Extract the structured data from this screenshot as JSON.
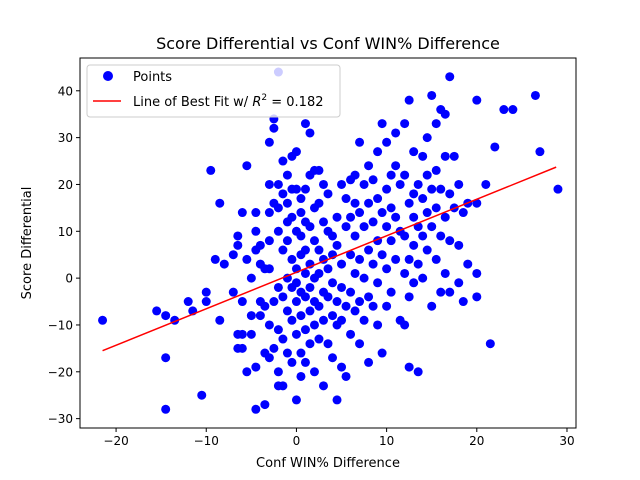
{
  "chart_data": {
    "type": "scatter",
    "title": "Score Differential vs Conf WIN% Difference",
    "xlabel": "Conf WIN% Difference",
    "ylabel": "Score Differential",
    "xlim": [
      -24,
      31
    ],
    "ylim": [
      -32,
      47
    ],
    "xticks": [
      -20,
      -10,
      0,
      10,
      20,
      30
    ],
    "xtick_labels": [
      "−20",
      "−10",
      "0",
      "10",
      "20",
      "30"
    ],
    "yticks": [
      -30,
      -20,
      -10,
      0,
      10,
      20,
      30,
      40
    ],
    "ytick_labels": [
      "−30",
      "−20",
      "−10",
      "0",
      "10",
      "20",
      "30",
      "40"
    ],
    "grid": false,
    "legend_position": "upper-left",
    "series": [
      {
        "name": "Points",
        "type": "scatter",
        "color": "#0000ff",
        "points": [
          [
            -21.5,
            -9
          ],
          [
            -15.5,
            -7
          ],
          [
            -14.5,
            -8
          ],
          [
            -14.5,
            -17
          ],
          [
            -14.5,
            -28
          ],
          [
            -13.5,
            -9
          ],
          [
            -12,
            -5
          ],
          [
            -11.5,
            -7
          ],
          [
            -10.5,
            -25
          ],
          [
            -10,
            -5
          ],
          [
            -10,
            -3
          ],
          [
            -9.5,
            23
          ],
          [
            -9,
            4
          ],
          [
            -8.5,
            16
          ],
          [
            -8.5,
            -9
          ],
          [
            -8,
            3
          ],
          [
            -7,
            5
          ],
          [
            -7,
            -3
          ],
          [
            -6.5,
            9
          ],
          [
            -6.5,
            7
          ],
          [
            -6.5,
            -12
          ],
          [
            -6.5,
            -15
          ],
          [
            -6,
            -5
          ],
          [
            -6,
            -12
          ],
          [
            -6,
            14
          ],
          [
            -6,
            -15
          ],
          [
            -5.5,
            4
          ],
          [
            -5.5,
            24
          ],
          [
            -5.5,
            -20
          ],
          [
            -5,
            -12
          ],
          [
            -5,
            0
          ],
          [
            -5,
            -8
          ],
          [
            -4.5,
            14
          ],
          [
            -4.5,
            10
          ],
          [
            -4.5,
            6
          ],
          [
            -4.5,
            -19
          ],
          [
            -4.5,
            -28
          ],
          [
            -4,
            3
          ],
          [
            -4,
            -8
          ],
          [
            -4,
            -5
          ],
          [
            -4,
            7
          ],
          [
            -3.5,
            -27
          ],
          [
            -3.5,
            -16
          ],
          [
            -3.5,
            2
          ],
          [
            -3.5,
            -6
          ],
          [
            -3,
            29
          ],
          [
            -3,
            20
          ],
          [
            -3,
            14
          ],
          [
            -3,
            8
          ],
          [
            -3,
            2
          ],
          [
            -3,
            -10
          ],
          [
            -3,
            -17
          ],
          [
            -2.5,
            34
          ],
          [
            -2.5,
            32
          ],
          [
            -2.5,
            16
          ],
          [
            -2.5,
            -5
          ],
          [
            -2.5,
            -15
          ],
          [
            -2,
            44
          ],
          [
            -2,
            20
          ],
          [
            -2,
            15
          ],
          [
            -2,
            10
          ],
          [
            -2,
            -2
          ],
          [
            -2,
            -11
          ],
          [
            -2,
            -20
          ],
          [
            -2,
            -23
          ],
          [
            -1.5,
            18
          ],
          [
            -1.5,
            25
          ],
          [
            -1.5,
            6
          ],
          [
            -1.5,
            -4
          ],
          [
            -1.5,
            -13
          ],
          [
            -1.5,
            -23
          ],
          [
            -1,
            22
          ],
          [
            -1,
            16
          ],
          [
            -1,
            12
          ],
          [
            -1,
            8
          ],
          [
            -1,
            0
          ],
          [
            -1,
            -7
          ],
          [
            -1,
            -16
          ],
          [
            -0.5,
            26
          ],
          [
            -0.5,
            19
          ],
          [
            -0.5,
            13
          ],
          [
            -0.5,
            4
          ],
          [
            -0.5,
            -2
          ],
          [
            -0.5,
            -9
          ],
          [
            -0.5,
            -18
          ],
          [
            0,
            27
          ],
          [
            0,
            19
          ],
          [
            0,
            10
          ],
          [
            0,
            2
          ],
          [
            0,
            -1
          ],
          [
            0,
            -5
          ],
          [
            0,
            -12
          ],
          [
            0,
            -26
          ],
          [
            0.5,
            17
          ],
          [
            0.5,
            14
          ],
          [
            0.5,
            9
          ],
          [
            0.5,
            5
          ],
          [
            0.5,
            -3
          ],
          [
            0.5,
            -8
          ],
          [
            0.5,
            -16
          ],
          [
            0.5,
            -21
          ],
          [
            1,
            33
          ],
          [
            1,
            19
          ],
          [
            1,
            12
          ],
          [
            1,
            6
          ],
          [
            1,
            1
          ],
          [
            1,
            -4
          ],
          [
            1,
            -11
          ],
          [
            1,
            -18
          ],
          [
            1.5,
            31
          ],
          [
            1.5,
            22
          ],
          [
            1.5,
            11
          ],
          [
            1.5,
            3
          ],
          [
            1.5,
            -2
          ],
          [
            1.5,
            -7
          ],
          [
            1.5,
            -14
          ],
          [
            2,
            23
          ],
          [
            2,
            15
          ],
          [
            2,
            8
          ],
          [
            2,
            0
          ],
          [
            2,
            -5
          ],
          [
            2,
            -10
          ],
          [
            2,
            -20
          ],
          [
            2.5,
            23
          ],
          [
            2.5,
            16
          ],
          [
            2.5,
            6
          ],
          [
            2.5,
            1
          ],
          [
            2.5,
            -6
          ],
          [
            2.5,
            -13
          ],
          [
            3,
            20
          ],
          [
            3,
            12
          ],
          [
            3,
            4
          ],
          [
            3,
            -3
          ],
          [
            3,
            -9
          ],
          [
            3,
            -23
          ],
          [
            3.5,
            18
          ],
          [
            3.5,
            10
          ],
          [
            3.5,
            2
          ],
          [
            3.5,
            -4
          ],
          [
            3.5,
            -14
          ],
          [
            4,
            9
          ],
          [
            4,
            5
          ],
          [
            4,
            -1
          ],
          [
            4,
            -8
          ],
          [
            4,
            -17
          ],
          [
            4.5,
            13
          ],
          [
            4.5,
            7
          ],
          [
            4.5,
            -5
          ],
          [
            4.5,
            -10
          ],
          [
            4.5,
            -26
          ],
          [
            5,
            20
          ],
          [
            5,
            3
          ],
          [
            5,
            -2
          ],
          [
            5,
            -9
          ],
          [
            5,
            -19
          ],
          [
            5.5,
            17
          ],
          [
            5.5,
            11
          ],
          [
            5.5,
            -6
          ],
          [
            5.5,
            -21
          ],
          [
            6,
            21
          ],
          [
            6,
            13
          ],
          [
            6,
            5
          ],
          [
            6,
            -3
          ],
          [
            6,
            -12
          ],
          [
            6.5,
            22
          ],
          [
            6.5,
            16
          ],
          [
            6.5,
            9
          ],
          [
            6.5,
            1
          ],
          [
            6.5,
            -7
          ],
          [
            7,
            29
          ],
          [
            7,
            14
          ],
          [
            7,
            4
          ],
          [
            7,
            -5
          ],
          [
            7,
            -14
          ],
          [
            7.5,
            20
          ],
          [
            7.5,
            11
          ],
          [
            7.5,
            0
          ],
          [
            7.5,
            -9
          ],
          [
            8,
            24
          ],
          [
            8,
            16
          ],
          [
            8,
            6
          ],
          [
            8,
            -4
          ],
          [
            8,
            -18
          ],
          [
            8.5,
            21
          ],
          [
            8.5,
            12
          ],
          [
            8.5,
            3
          ],
          [
            8.5,
            -6
          ],
          [
            9,
            27
          ],
          [
            9,
            17
          ],
          [
            9,
            8
          ],
          [
            9,
            -1
          ],
          [
            9,
            -10
          ],
          [
            9.5,
            33
          ],
          [
            9.5,
            14
          ],
          [
            9.5,
            5
          ],
          [
            9.5,
            -16
          ],
          [
            10,
            29
          ],
          [
            10,
            19
          ],
          [
            10,
            11
          ],
          [
            10,
            2
          ],
          [
            10,
            -6
          ],
          [
            10.5,
            22
          ],
          [
            10.5,
            15
          ],
          [
            10.5,
            8
          ],
          [
            10.5,
            -3
          ],
          [
            11,
            31
          ],
          [
            11,
            24
          ],
          [
            11,
            13
          ],
          [
            11,
            4
          ],
          [
            11.5,
            20
          ],
          [
            11.5,
            10
          ],
          [
            11.5,
            -9
          ],
          [
            12,
            33
          ],
          [
            12,
            22
          ],
          [
            12,
            9
          ],
          [
            12,
            1
          ],
          [
            12,
            -10
          ],
          [
            12.5,
            38
          ],
          [
            12.5,
            16
          ],
          [
            12.5,
            4
          ],
          [
            12.5,
            -4
          ],
          [
            12.5,
            -19
          ],
          [
            13,
            27
          ],
          [
            13,
            18
          ],
          [
            13,
            13
          ],
          [
            13,
            7
          ],
          [
            13,
            -1
          ],
          [
            13.5,
            20
          ],
          [
            13.5,
            11
          ],
          [
            13.5,
            3
          ],
          [
            13.5,
            -20
          ],
          [
            14,
            26
          ],
          [
            14,
            17
          ],
          [
            14,
            9
          ],
          [
            14,
            0
          ],
          [
            14.5,
            30
          ],
          [
            14.5,
            22
          ],
          [
            14.5,
            14
          ],
          [
            14.5,
            6
          ],
          [
            15,
            39
          ],
          [
            15,
            19
          ],
          [
            15,
            11
          ],
          [
            15,
            -6
          ],
          [
            15.5,
            33
          ],
          [
            15.5,
            23
          ],
          [
            15.5,
            15
          ],
          [
            15.5,
            4
          ],
          [
            16,
            36
          ],
          [
            16,
            19
          ],
          [
            16,
            9
          ],
          [
            16,
            -3
          ],
          [
            16.5,
            35
          ],
          [
            16.5,
            26
          ],
          [
            16.5,
            13
          ],
          [
            16.5,
            1
          ],
          [
            17,
            43
          ],
          [
            17,
            18
          ],
          [
            17,
            8
          ],
          [
            17,
            -3
          ],
          [
            17.5,
            26
          ],
          [
            17.5,
            15
          ],
          [
            18,
            20
          ],
          [
            18,
            7
          ],
          [
            18,
            -1
          ],
          [
            18.5,
            14
          ],
          [
            18.5,
            -5
          ],
          [
            19,
            16
          ],
          [
            19,
            3
          ],
          [
            20,
            38
          ],
          [
            20,
            16
          ],
          [
            20,
            1
          ],
          [
            20,
            -4
          ],
          [
            21,
            20
          ],
          [
            21.5,
            -14
          ],
          [
            22,
            28
          ],
          [
            23,
            36
          ],
          [
            24,
            36
          ],
          [
            26.5,
            39
          ],
          [
            27,
            27
          ],
          [
            29,
            19
          ]
        ]
      },
      {
        "name": "Line of Best Fit w/ R² = 0.182",
        "type": "line",
        "color": "#ff0000",
        "x": [
          -21.5,
          28.8
        ],
        "y": [
          -15.5,
          23.7
        ]
      }
    ],
    "legend": [
      {
        "label": "Points",
        "marker": "circle",
        "color": "#0000ff"
      },
      {
        "label_prefix": "Line of Best Fit w/ ",
        "label_r2": "R",
        "label_suffix": " = 0.182",
        "marker": "line",
        "color": "#ff0000"
      }
    ]
  }
}
